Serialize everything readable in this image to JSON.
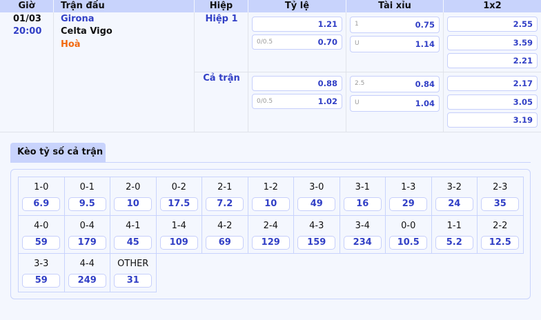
{
  "header": {
    "time": "Giờ",
    "match": "Trận đấu",
    "half": "Hiệp",
    "handicap": "Tỷ lệ",
    "overunder": "Tài xỉu",
    "x12": "1x2"
  },
  "match": {
    "date": "01/03",
    "time": "20:00",
    "home": "Girona",
    "away": "Celta Vigo",
    "draw": "Hoà"
  },
  "periods": [
    {
      "label": "Hiệp 1",
      "handicap": [
        {
          "line": "",
          "odds": "1.21"
        },
        {
          "line": "0/0.5",
          "odds": "0.70"
        }
      ],
      "overunder": [
        {
          "line": "1",
          "odds": "0.75"
        },
        {
          "line": "U",
          "odds": "1.14"
        }
      ],
      "x12": [
        "2.55",
        "3.59",
        "2.21"
      ]
    },
    {
      "label": "Cả trận",
      "handicap": [
        {
          "line": "",
          "odds": "0.88"
        },
        {
          "line": "0/0.5",
          "odds": "1.02"
        }
      ],
      "overunder": [
        {
          "line": "2.5",
          "odds": "0.84"
        },
        {
          "line": "U",
          "odds": "1.04"
        }
      ],
      "x12": [
        "2.17",
        "3.05",
        "3.19"
      ]
    }
  ],
  "correct_score": {
    "tab": "Kèo tỷ số cả trận",
    "items": [
      {
        "score": "1-0",
        "odds": "6.9"
      },
      {
        "score": "0-1",
        "odds": "9.5"
      },
      {
        "score": "2-0",
        "odds": "10"
      },
      {
        "score": "0-2",
        "odds": "17.5"
      },
      {
        "score": "2-1",
        "odds": "7.2"
      },
      {
        "score": "1-2",
        "odds": "10"
      },
      {
        "score": "3-0",
        "odds": "49"
      },
      {
        "score": "3-1",
        "odds": "16"
      },
      {
        "score": "1-3",
        "odds": "29"
      },
      {
        "score": "3-2",
        "odds": "24"
      },
      {
        "score": "2-3",
        "odds": "35"
      },
      {
        "score": "4-0",
        "odds": "59"
      },
      {
        "score": "0-4",
        "odds": "179"
      },
      {
        "score": "4-1",
        "odds": "45"
      },
      {
        "score": "1-4",
        "odds": "109"
      },
      {
        "score": "4-2",
        "odds": "69"
      },
      {
        "score": "2-4",
        "odds": "129"
      },
      {
        "score": "4-3",
        "odds": "159"
      },
      {
        "score": "3-4",
        "odds": "234"
      },
      {
        "score": "0-0",
        "odds": "10.5"
      },
      {
        "score": "1-1",
        "odds": "5.2"
      },
      {
        "score": "2-2",
        "odds": "12.5"
      },
      {
        "score": "3-3",
        "odds": "59"
      },
      {
        "score": "4-4",
        "odds": "249"
      },
      {
        "score": "OTHER",
        "odds": "31"
      }
    ]
  }
}
